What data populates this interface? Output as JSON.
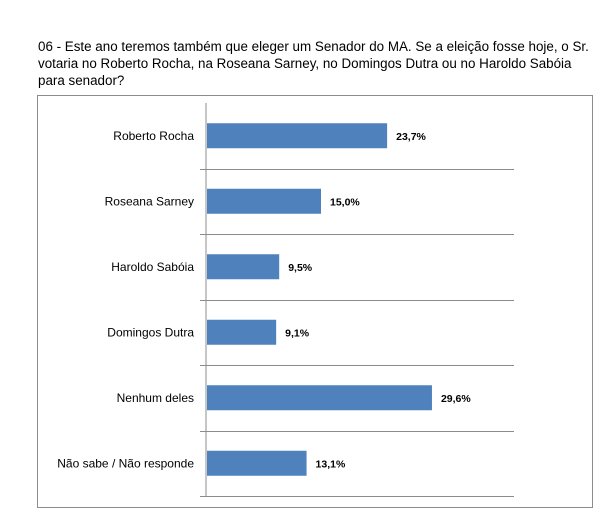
{
  "question": {
    "text": "06 - Este ano teremos também que eleger um Senador do MA. Se a eleição fosse hoje, o Sr. votaria no Roberto Rocha, na Roseana Sarney, no Domingos Dutra ou no Haroldo Sabóia para senador?"
  },
  "colors": {
    "bar": "#4f81bd",
    "grid": "#8c8c8c",
    "frame": "#8c8c8c"
  },
  "chart_data": {
    "type": "bar",
    "orientation": "horizontal",
    "categories": [
      "Roberto Rocha",
      "Roseana Sarney",
      "Haroldo Sabóia",
      "Domingos Dutra",
      "Nenhum deles",
      "Não sabe / Não responde"
    ],
    "values": [
      23.7,
      15.0,
      9.5,
      9.1,
      29.6,
      13.1
    ],
    "value_labels": [
      "23,7%",
      "15,0%",
      "9,5%",
      "9,1%",
      "29,6%",
      "13,1%"
    ],
    "unit": "%",
    "xlim": [
      0,
      52
    ],
    "title": "",
    "xlabel": "",
    "ylabel": "",
    "grid": "horizontal separators between categories",
    "legend": "none"
  }
}
